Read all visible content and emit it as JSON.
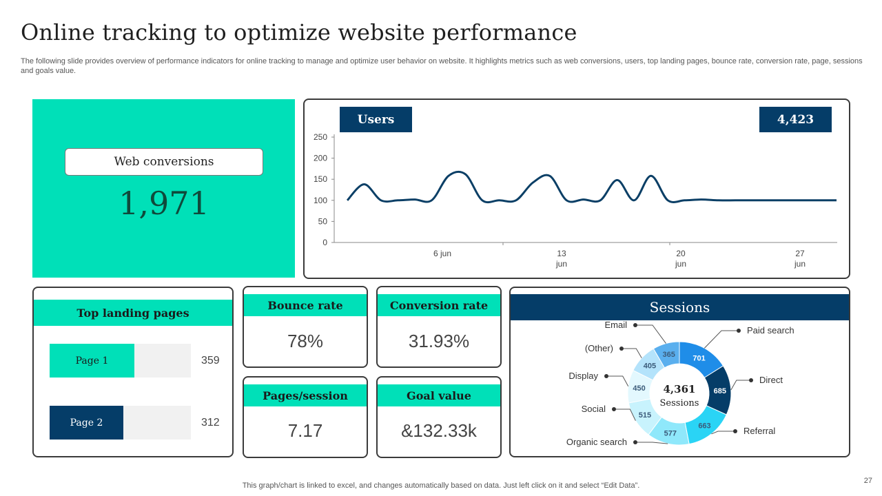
{
  "header": {
    "title": "Online tracking to optimize website performance",
    "subtitle": "The following slide provides overview of performance indicators for online tracking to manage and optimize user behavior on website. It highlights metrics such as web conversions, users, top landing pages, bounce rate, conversion rate, page, sessions and goals value."
  },
  "web_conversions": {
    "label": "Web conversions",
    "value": "1,971"
  },
  "users": {
    "label": "Users",
    "total": "4,423",
    "y_ticks": [
      "250",
      "200",
      "150",
      "100",
      "50",
      "0"
    ],
    "x_ticks": [
      {
        "line1": "6 jun",
        "line2": ""
      },
      {
        "line1": "13",
        "line2": "jun"
      },
      {
        "line1": "20",
        "line2": "jun"
      },
      {
        "line1": "27",
        "line2": "jun"
      }
    ]
  },
  "top_landing_pages": {
    "title": "Top landing pages",
    "pages": [
      {
        "label": "Page 1",
        "value": "359",
        "fraction": 0.6,
        "color": "#00e0b8",
        "text_color": "#1a1a1a"
      },
      {
        "label": "Page 2",
        "value": "312",
        "fraction": 0.52,
        "color": "#053d68",
        "text_color": "#ffffff"
      }
    ]
  },
  "metrics": {
    "bounce_rate": {
      "label": "Bounce rate",
      "value": "78%"
    },
    "conversion_rate": {
      "label": "Conversion rate",
      "value": "31.93%"
    },
    "pages_per_session": {
      "label": "Pages/session",
      "value": "7.17"
    },
    "goal_value": {
      "label": "Goal value",
      "value": "&132.33k"
    }
  },
  "sessions": {
    "title": "Sessions",
    "center_value": "4,361",
    "center_label": "Sessions"
  },
  "footer": {
    "note": "This graph/chart is linked to excel,  and changes automatically based on data. Just left click on it and select “Edit Data”.",
    "page_number": "27"
  },
  "colors": {
    "teal": "#00e0b8",
    "navy": "#053d68",
    "line": "#0b3f66"
  },
  "chart_data": [
    {
      "type": "line",
      "title": "Users",
      "x": [
        1,
        2,
        3,
        4,
        5,
        6,
        7,
        8,
        9,
        10,
        11,
        12,
        13,
        14,
        15,
        16,
        17,
        18,
        19,
        20,
        21,
        22,
        23,
        24,
        25,
        26,
        27,
        28,
        29,
        30
      ],
      "x_tick_labels": [
        "6 jun",
        "13 jun",
        "20 jun",
        "27 jun"
      ],
      "series": [
        {
          "name": "Users",
          "values": [
            100,
            138,
            100,
            100,
            102,
            100,
            158,
            162,
            100,
            100,
            100,
            142,
            158,
            100,
            102,
            100,
            148,
            100,
            158,
            100,
            100,
            102,
            100,
            100,
            100,
            100,
            100,
            100,
            100,
            100
          ]
        }
      ],
      "ylim": [
        0,
        250
      ],
      "yticks": [
        0,
        50,
        100,
        150,
        200,
        250
      ]
    },
    {
      "type": "pie",
      "title": "Sessions",
      "total": 4361,
      "slices": [
        {
          "label": "Paid search",
          "value": 701,
          "color": "#1f8de8"
        },
        {
          "label": "Direct",
          "value": 685,
          "color": "#053d68"
        },
        {
          "label": "Referral",
          "value": 663,
          "color": "#2ad4f5"
        },
        {
          "label": "Organic search",
          "value": 577,
          "color": "#8fe8fb"
        },
        {
          "label": "Social",
          "value": 515,
          "color": "#c8f3fd"
        },
        {
          "label": "Display",
          "value": 450,
          "color": "#e3f8fe"
        },
        {
          "label": "(Other)",
          "value": 405,
          "color": "#b4e3fb"
        },
        {
          "label": "Email",
          "value": 365,
          "color": "#5aafee"
        }
      ]
    }
  ]
}
